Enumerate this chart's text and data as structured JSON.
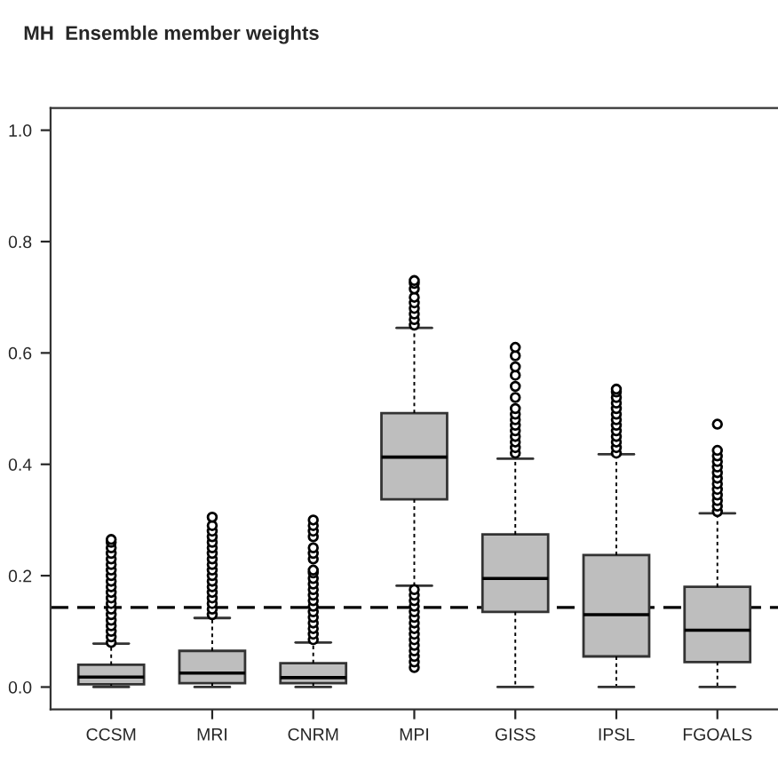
{
  "chart_data": {
    "type": "box",
    "title": "MH  Ensemble member weights",
    "categories": [
      "CCSM",
      "MRI",
      "CNRM",
      "MPI",
      "GISS",
      "IPSL",
      "FGOALS"
    ],
    "color": "#bebebe",
    "boxes": [
      {
        "low": 0,
        "q1": 0.005,
        "median": 0.018,
        "q3": 0.04,
        "high": 0.078,
        "outliers": [
          0.08,
          0.09,
          0.1,
          0.11,
          0.12,
          0.13,
          0.14,
          0.15,
          0.16,
          0.17,
          0.18,
          0.19,
          0.2,
          0.21,
          0.22,
          0.23,
          0.24,
          0.25,
          0.26,
          0.265
        ]
      },
      {
        "low": 0,
        "q1": 0.007,
        "median": 0.025,
        "q3": 0.065,
        "high": 0.124,
        "outliers": [
          0.13,
          0.14,
          0.15,
          0.16,
          0.17,
          0.18,
          0.19,
          0.2,
          0.21,
          0.22,
          0.23,
          0.24,
          0.25,
          0.26,
          0.27,
          0.28,
          0.29,
          0.305
        ]
      },
      {
        "low": 0,
        "q1": 0.007,
        "median": 0.017,
        "q3": 0.043,
        "high": 0.08,
        "outliers": [
          0.085,
          0.095,
          0.105,
          0.115,
          0.125,
          0.135,
          0.145,
          0.155,
          0.165,
          0.175,
          0.185,
          0.195,
          0.205,
          0.21,
          0.23,
          0.24,
          0.25,
          0.27,
          0.28,
          0.29,
          0.3
        ]
      },
      {
        "low": 0.182,
        "q1": 0.337,
        "median": 0.413,
        "q3": 0.492,
        "high": 0.645,
        "outliers": [
          0.035,
          0.045,
          0.055,
          0.065,
          0.075,
          0.085,
          0.095,
          0.105,
          0.115,
          0.125,
          0.135,
          0.145,
          0.155,
          0.165,
          0.175,
          0.65,
          0.66,
          0.67,
          0.68,
          0.69,
          0.7,
          0.715,
          0.725,
          0.73
        ]
      },
      {
        "low": 0,
        "q1": 0.135,
        "median": 0.195,
        "q3": 0.274,
        "high": 0.41,
        "outliers": [
          0.42,
          0.43,
          0.44,
          0.45,
          0.46,
          0.47,
          0.48,
          0.49,
          0.5,
          0.52,
          0.54,
          0.56,
          0.575,
          0.595,
          0.61
        ]
      },
      {
        "low": 0,
        "q1": 0.055,
        "median": 0.13,
        "q3": 0.237,
        "high": 0.418,
        "outliers": [
          0.42,
          0.43,
          0.44,
          0.45,
          0.46,
          0.47,
          0.48,
          0.49,
          0.5,
          0.51,
          0.52,
          0.53,
          0.535
        ]
      },
      {
        "low": 0,
        "q1": 0.045,
        "median": 0.102,
        "q3": 0.18,
        "high": 0.312,
        "outliers": [
          0.315,
          0.325,
          0.335,
          0.345,
          0.355,
          0.365,
          0.375,
          0.385,
          0.395,
          0.405,
          0.415,
          0.425,
          0.472
        ]
      }
    ],
    "ylim": [
      -0.04,
      1.04
    ],
    "yticks": [
      {
        "value": 0,
        "label": "0.0"
      },
      0.2,
      0.4,
      0.6,
      0.8,
      {
        "value": 1,
        "label": "1.0"
      }
    ],
    "ref_lines": [
      {
        "axis": "y",
        "value": 0.143,
        "line_style": "dashed",
        "color": "#000000"
      }
    ],
    "grid": false,
    "legend": false
  }
}
